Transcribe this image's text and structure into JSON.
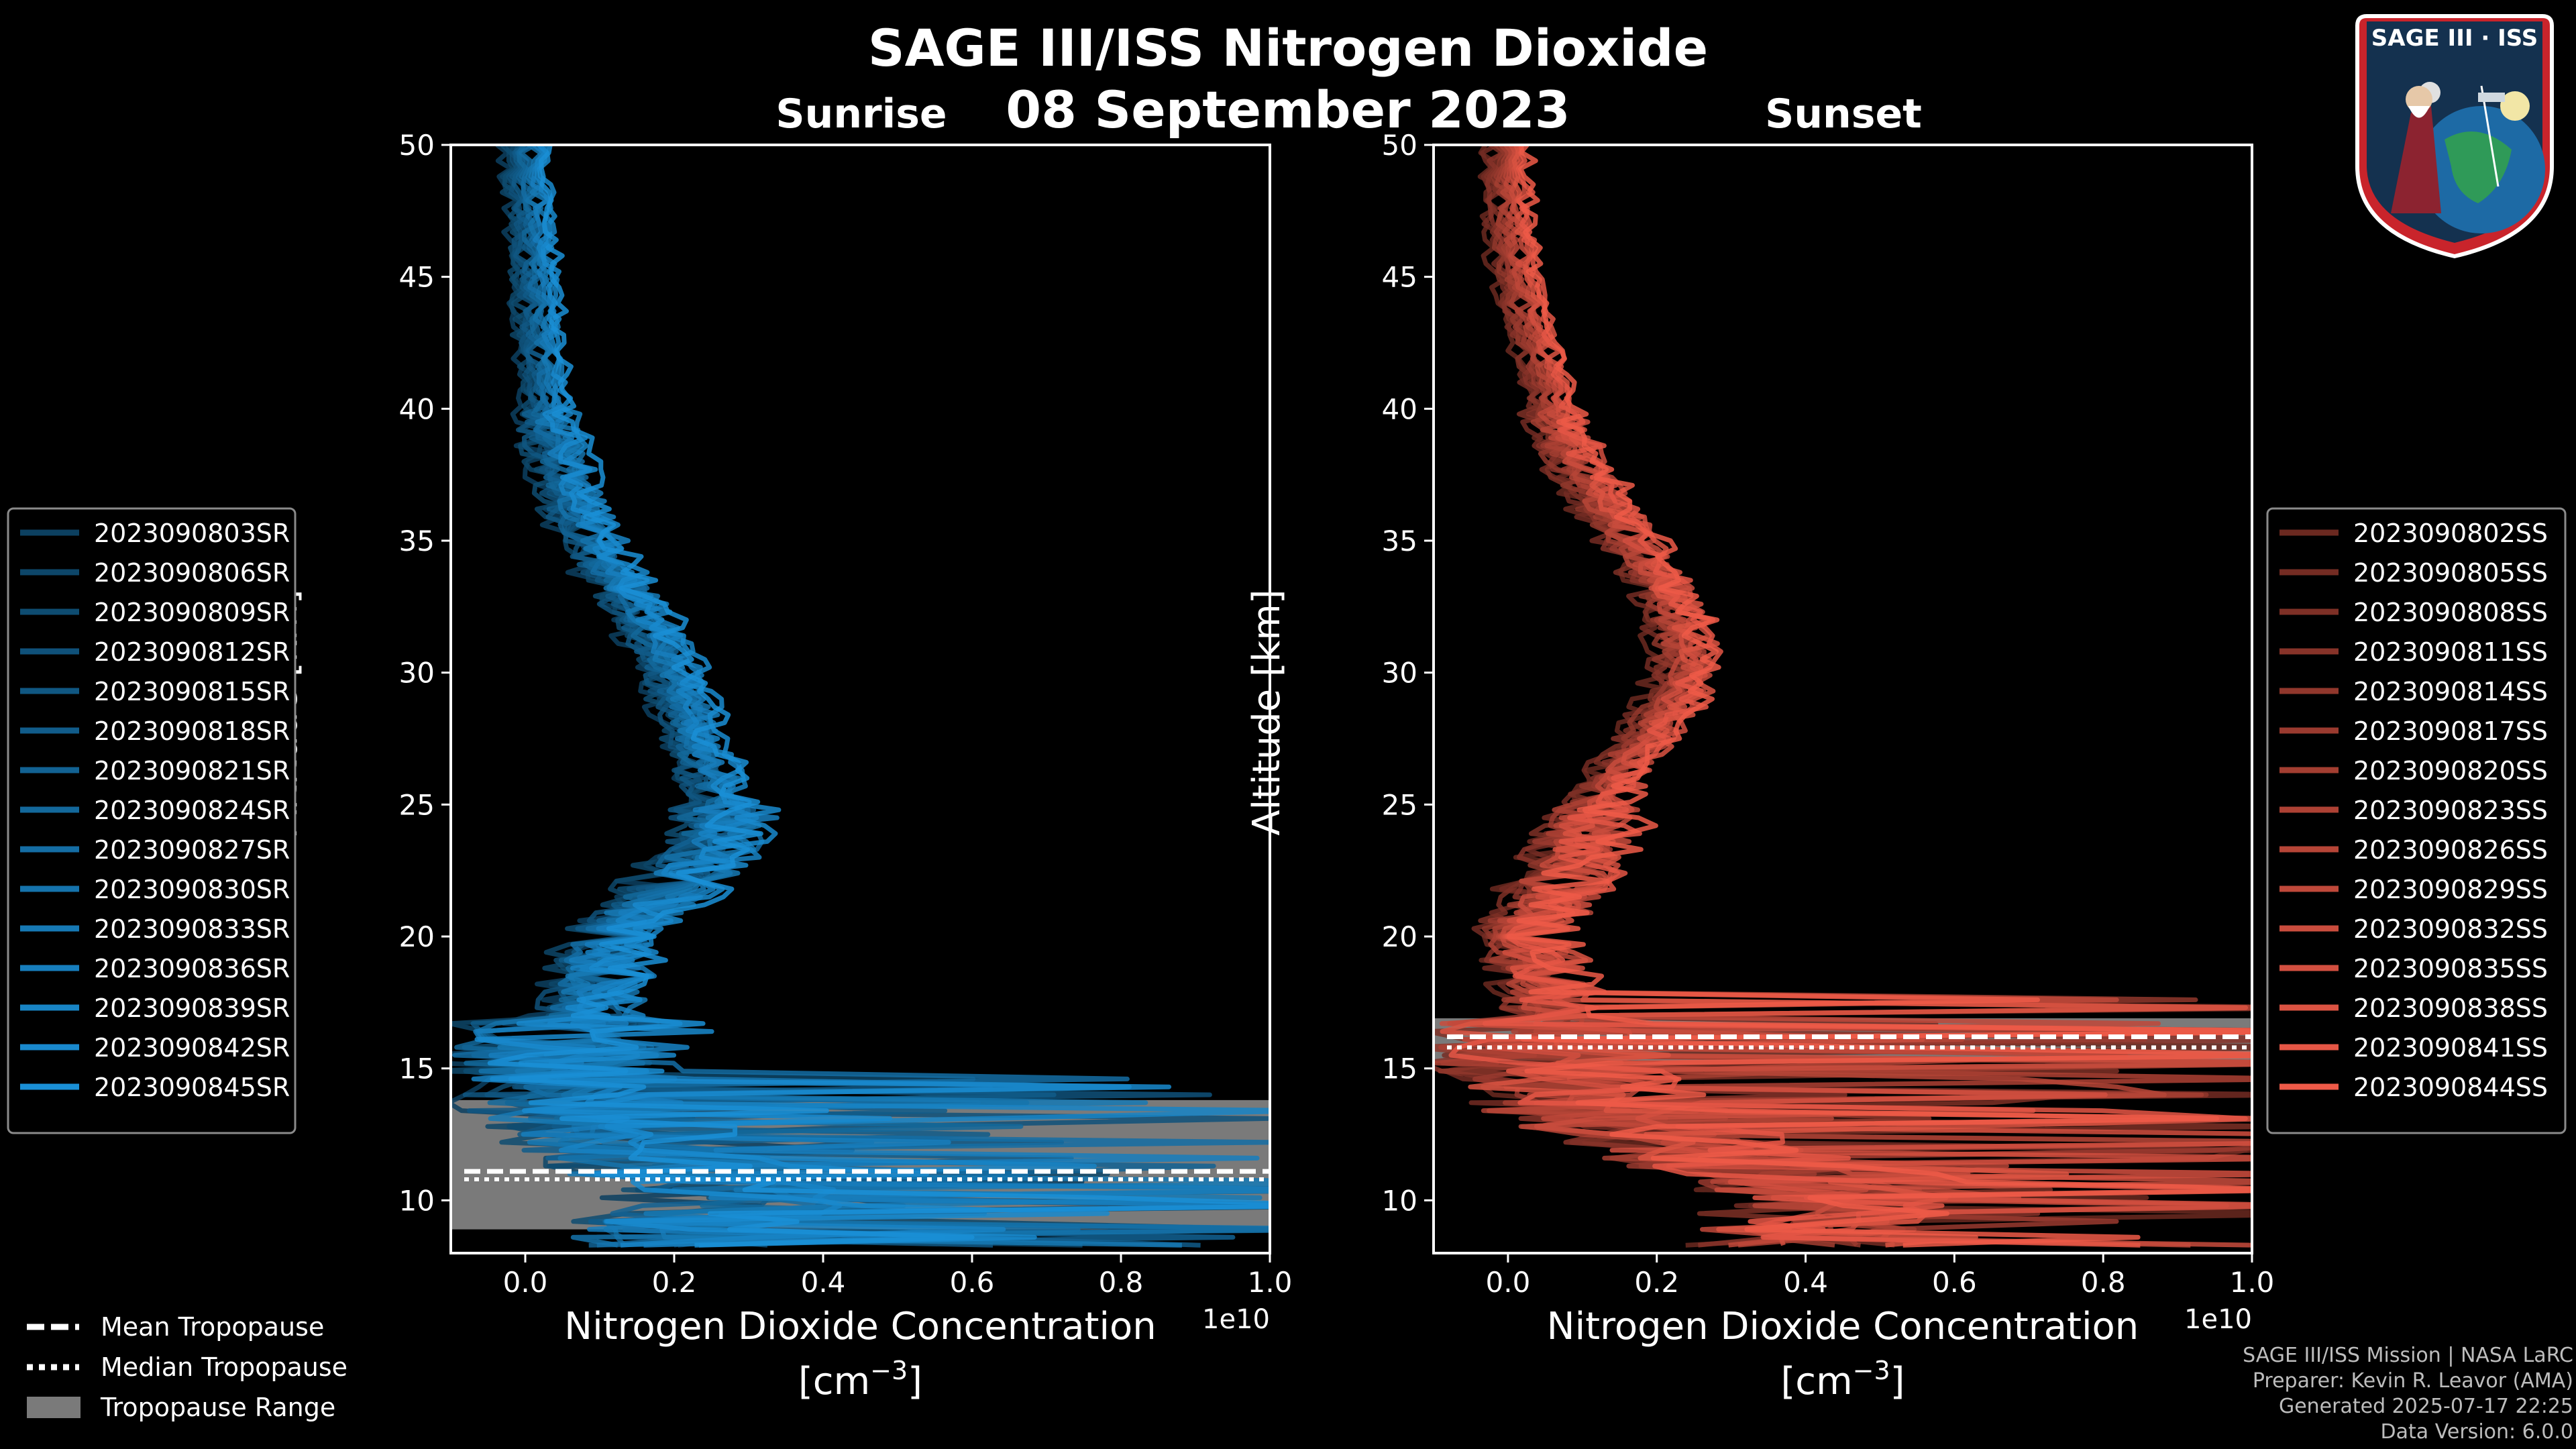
{
  "title": "SAGE III/ISS Nitrogen Dioxide",
  "date": "08 September 2023",
  "colors": {
    "sunrise": "#1a8fd6",
    "sunset": "#ee5a48",
    "tropopause_band": "#7a7a7a",
    "background": "#000000"
  },
  "chart_data": [
    {
      "type": "line",
      "panel": "Sunrise",
      "title": "Sunrise",
      "xlabel": "Nitrogen Dioxide Concentration",
      "xlabel_units": "[cm",
      "xlabel_units_exp": "−3",
      "xlabel_units_close": "]",
      "ylabel": "Altitude [km]",
      "xlim": [
        -0.1,
        1.0
      ],
      "ylim": [
        8,
        50
      ],
      "x_scale_label": "1e10",
      "x_ticks": [
        0.0,
        0.2,
        0.4,
        0.6,
        0.8,
        1.0
      ],
      "x_tick_labels": [
        "0.0",
        "0.2",
        "0.4",
        "0.6",
        "0.8",
        "1.0"
      ],
      "y_ticks": [
        10,
        15,
        20,
        25,
        30,
        35,
        40,
        45,
        50
      ],
      "y_tick_labels": [
        "10",
        "15",
        "20",
        "25",
        "30",
        "35",
        "40",
        "45",
        "50"
      ],
      "tropopause": {
        "range": [
          8.9,
          13.8
        ],
        "mean": 11.1,
        "median": 11.0
      },
      "mean_profile": {
        "altitude": [
          50,
          48,
          46,
          44,
          42,
          40,
          38,
          36,
          34,
          32,
          30,
          28,
          26,
          24,
          23,
          22,
          21,
          20,
          19,
          18,
          17,
          16,
          15,
          14,
          13,
          12,
          11,
          10,
          9
        ],
        "value": [
          0.0,
          0.005,
          0.01,
          0.015,
          0.02,
          0.03,
          0.045,
          0.07,
          0.11,
          0.16,
          0.2,
          0.22,
          0.25,
          0.27,
          0.24,
          0.2,
          0.16,
          0.12,
          0.1,
          0.1,
          0.08,
          0.06,
          0.05,
          0.06,
          0.1,
          0.15,
          0.2,
          0.3,
          0.2
        ]
      },
      "events": [
        "2023090803SR",
        "2023090806SR",
        "2023090809SR",
        "2023090812SR",
        "2023090815SR",
        "2023090818SR",
        "2023090821SR",
        "2023090824SR",
        "2023090827SR",
        "2023090830SR",
        "2023090833SR",
        "2023090836SR",
        "2023090839SR",
        "2023090842SR",
        "2023090845SR"
      ]
    },
    {
      "type": "line",
      "panel": "Sunset",
      "title": "Sunset",
      "xlabel": "Nitrogen Dioxide Concentration",
      "xlabel_units": "[cm",
      "xlabel_units_exp": "−3",
      "xlabel_units_close": "]",
      "ylabel": "Altitude [km]",
      "xlim": [
        -0.1,
        1.0
      ],
      "ylim": [
        8,
        50
      ],
      "x_scale_label": "1e10",
      "x_ticks": [
        0.0,
        0.2,
        0.4,
        0.6,
        0.8,
        1.0
      ],
      "x_tick_labels": [
        "0.0",
        "0.2",
        "0.4",
        "0.6",
        "0.8",
        "1.0"
      ],
      "y_ticks": [
        10,
        15,
        20,
        25,
        30,
        35,
        40,
        45,
        50
      ],
      "y_tick_labels": [
        "10",
        "15",
        "20",
        "25",
        "30",
        "35",
        "40",
        "45",
        "50"
      ],
      "tropopause": {
        "range": [
          15.3,
          16.9
        ],
        "mean": 16.2,
        "median": 16.0
      },
      "mean_profile": {
        "altitude": [
          50,
          48,
          46,
          44,
          42,
          40,
          38,
          36,
          34,
          32,
          30,
          28,
          26,
          24,
          23,
          22,
          21,
          20,
          19,
          18,
          17,
          16,
          15,
          14,
          13,
          12,
          11,
          10,
          9
        ],
        "value": [
          0.0,
          0.0,
          0.005,
          0.02,
          0.04,
          0.06,
          0.09,
          0.14,
          0.19,
          0.23,
          0.24,
          0.2,
          0.14,
          0.11,
          0.09,
          0.07,
          0.05,
          0.03,
          0.04,
          0.05,
          0.06,
          0.04,
          0.05,
          0.09,
          0.15,
          0.25,
          0.35,
          0.45,
          0.4
        ]
      },
      "events": [
        "2023090802SS",
        "2023090805SS",
        "2023090808SS",
        "2023090811SS",
        "2023090814SS",
        "2023090817SS",
        "2023090820SS",
        "2023090823SS",
        "2023090826SS",
        "2023090829SS",
        "2023090832SS",
        "2023090835SS",
        "2023090838SS",
        "2023090841SS",
        "2023090844SS"
      ]
    }
  ],
  "tropopause_legend": [
    "Mean Tropopause",
    "Median Tropopause",
    "Tropopause Range"
  ],
  "logo": {
    "text": "SAGE III · ISS"
  },
  "footer": {
    "line1": "SAGE III/ISS Mission | NASA LaRC",
    "line2": "Preparer: Kevin R. Leavor (AMA)",
    "line3": "Generated 2025-07-17 22:25",
    "line4": "Data Version: 6.0.0"
  }
}
